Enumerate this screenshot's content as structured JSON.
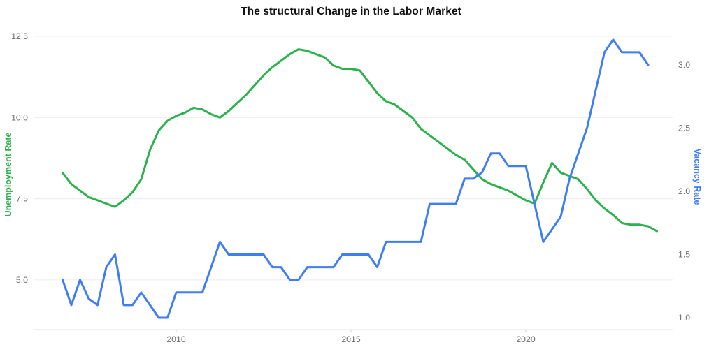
{
  "page": {
    "background": "#ffffff"
  },
  "chart_data": {
    "type": "line",
    "title": "The structural Change in the Labor Market",
    "grid": "horizontal-only",
    "legend_position": "none",
    "x_axis": {
      "tick_labels": [
        "2010",
        "2015",
        "2020"
      ],
      "tick_years": [
        2010,
        2015,
        2020
      ],
      "range": [
        2005.9,
        2024.2
      ]
    },
    "left_axis": {
      "label": "Unemployment Rate",
      "color": "#2bb24c",
      "tick_labels": [
        "12.5",
        "10.0",
        "7.5",
        "5.0"
      ],
      "tick_values": [
        12.5,
        10.0,
        7.5,
        5.0
      ],
      "range": [
        4.3,
        12.8
      ]
    },
    "right_axis": {
      "label": "Vacancy Rate",
      "color": "#3e7ef2",
      "tick_labels": [
        "3.0",
        "2.5",
        "2.0",
        "1.5",
        "1.0"
      ],
      "tick_values": [
        3.0,
        2.5,
        2.0,
        1.5,
        1.0
      ],
      "range": [
        0.9,
        3.3
      ]
    },
    "series": [
      {
        "name": "Unemployment Rate",
        "axis": "left",
        "color": "#2bb24c",
        "x": [
          2006.75,
          2007.0,
          2007.25,
          2007.5,
          2007.75,
          2008.0,
          2008.25,
          2008.5,
          2008.75,
          2009.0,
          2009.25,
          2009.5,
          2009.75,
          2010.0,
          2010.25,
          2010.5,
          2010.75,
          2011.0,
          2011.25,
          2011.5,
          2011.75,
          2012.0,
          2012.25,
          2012.5,
          2012.75,
          2013.0,
          2013.25,
          2013.5,
          2013.75,
          2014.0,
          2014.25,
          2014.5,
          2014.75,
          2015.0,
          2015.25,
          2015.5,
          2015.75,
          2016.0,
          2016.25,
          2016.5,
          2016.75,
          2017.0,
          2017.25,
          2017.5,
          2017.75,
          2018.0,
          2018.25,
          2018.5,
          2018.75,
          2019.0,
          2019.25,
          2019.5,
          2019.75,
          2020.0,
          2020.25,
          2020.5,
          2020.75,
          2021.0,
          2021.25,
          2021.5,
          2021.75,
          2022.0,
          2022.25,
          2022.5,
          2022.75,
          2023.0,
          2023.25,
          2023.5,
          2023.75
        ],
        "values": [
          8.3,
          7.95,
          7.75,
          7.55,
          7.45,
          7.35,
          7.25,
          7.45,
          7.7,
          8.1,
          9.0,
          9.6,
          9.9,
          10.05,
          10.15,
          10.3,
          10.25,
          10.1,
          10.0,
          10.2,
          10.45,
          10.7,
          11.0,
          11.3,
          11.55,
          11.75,
          11.95,
          12.1,
          12.05,
          11.95,
          11.85,
          11.6,
          11.5,
          11.5,
          11.45,
          11.1,
          10.75,
          10.5,
          10.4,
          10.2,
          10.0,
          9.65,
          9.45,
          9.25,
          9.05,
          8.85,
          8.7,
          8.4,
          8.1,
          7.95,
          7.85,
          7.75,
          7.6,
          7.45,
          7.35,
          8.0,
          8.6,
          8.3,
          8.2,
          8.1,
          7.8,
          7.45,
          7.2,
          7.0,
          6.75,
          6.7,
          6.7,
          6.65,
          6.5
        ]
      },
      {
        "name": "Vacancy Rate",
        "axis": "right",
        "color": "#3e7ef2",
        "x": [
          2006.75,
          2007.0,
          2007.25,
          2007.5,
          2007.75,
          2008.0,
          2008.25,
          2008.5,
          2008.75,
          2009.0,
          2009.25,
          2009.5,
          2009.75,
          2010.0,
          2010.25,
          2010.5,
          2010.75,
          2011.0,
          2011.25,
          2011.5,
          2011.75,
          2012.0,
          2012.25,
          2012.5,
          2012.75,
          2013.0,
          2013.25,
          2013.5,
          2013.75,
          2014.0,
          2014.25,
          2014.5,
          2014.75,
          2015.0,
          2015.25,
          2015.5,
          2015.75,
          2016.0,
          2016.25,
          2016.5,
          2016.75,
          2017.0,
          2017.25,
          2017.5,
          2017.75,
          2018.0,
          2018.25,
          2018.5,
          2018.75,
          2019.0,
          2019.25,
          2019.5,
          2019.75,
          2020.0,
          2020.25,
          2020.5,
          2020.75,
          2021.0,
          2021.25,
          2021.5,
          2021.75,
          2022.0,
          2022.25,
          2022.5,
          2022.75,
          2023.0,
          2023.25,
          2023.5
        ],
        "values": [
          1.3,
          1.1,
          1.3,
          1.15,
          1.1,
          1.4,
          1.5,
          1.1,
          1.1,
          1.2,
          1.1,
          1.0,
          1.0,
          1.2,
          1.2,
          1.2,
          1.2,
          1.4,
          1.6,
          1.5,
          1.5,
          1.5,
          1.5,
          1.5,
          1.4,
          1.4,
          1.3,
          1.3,
          1.4,
          1.4,
          1.4,
          1.4,
          1.5,
          1.5,
          1.5,
          1.5,
          1.4,
          1.6,
          1.6,
          1.6,
          1.6,
          1.6,
          1.9,
          1.9,
          1.9,
          1.9,
          2.1,
          2.1,
          2.15,
          2.3,
          2.3,
          2.2,
          2.2,
          2.2,
          1.9,
          1.6,
          1.7,
          1.8,
          2.1,
          2.3,
          2.5,
          2.8,
          3.1,
          3.2,
          3.1,
          3.1,
          3.1,
          3.0
        ]
      }
    ],
    "style": {
      "gridline_color": "#ececef",
      "axisline_color": "#e2e2e6",
      "tick_text_color": "#6c6c72",
      "line_width": 3
    }
  }
}
